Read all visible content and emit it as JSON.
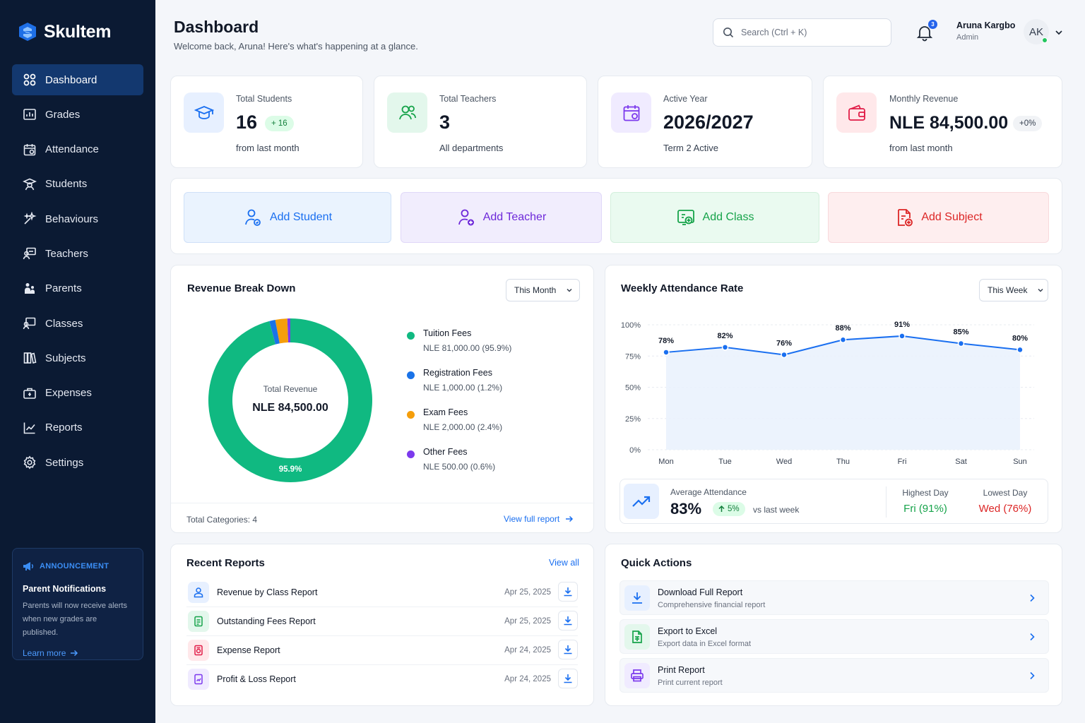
{
  "brand": {
    "name": "Skultem"
  },
  "nav": [
    {
      "label": "Dashboard",
      "icon": "dashboard-icon",
      "active": true
    },
    {
      "label": "Grades",
      "icon": "grades-icon"
    },
    {
      "label": "Attendance",
      "icon": "calendar-icon"
    },
    {
      "label": "Students",
      "icon": "student-icon"
    },
    {
      "label": "Behaviours",
      "icon": "sparkle-icon"
    },
    {
      "label": "Teachers",
      "icon": "teacher-icon"
    },
    {
      "label": "Parents",
      "icon": "parents-icon"
    },
    {
      "label": "Classes",
      "icon": "classes-icon"
    },
    {
      "label": "Subjects",
      "icon": "books-icon"
    },
    {
      "label": "Expenses",
      "icon": "expenses-icon"
    },
    {
      "label": "Reports",
      "icon": "reports-icon"
    },
    {
      "label": "Settings",
      "icon": "gear-icon"
    }
  ],
  "announcement": {
    "tag": "ANNOUNCEMENT",
    "title": "Parent Notifications",
    "text": "Parents will now receive alerts when new grades are published.",
    "link": "Learn more"
  },
  "header": {
    "title": "Dashboard",
    "subtitle": "Welcome back, Aruna! Here's what's happening at a glance.",
    "search_placeholder": "Search (Ctrl + K)",
    "notifications": "3",
    "user_name": "Aruna Kargbo",
    "user_role": "Admin",
    "avatar": "AK"
  },
  "stats": [
    {
      "label": "Total Students",
      "value": "16",
      "badge": "+ 16",
      "sub": "from last month"
    },
    {
      "label": "Total Teachers",
      "value": "3",
      "sub": "All departments"
    },
    {
      "label": "Active Year",
      "value": "2026/2027",
      "sub": "Term 2 Active"
    },
    {
      "label": "Monthly Revenue",
      "value": "NLE 84,500.00",
      "badge": "+0%",
      "sub": "from last month"
    }
  ],
  "quick_add": [
    {
      "label": "Add Student"
    },
    {
      "label": "Add Teacher"
    },
    {
      "label": "Add Class"
    },
    {
      "label": "Add Subject"
    }
  ],
  "revenue": {
    "title": "Revenue Break Down",
    "period": "This Month",
    "center_label": "Total Revenue",
    "center_value": "NLE 84,500.00",
    "slice_label": "95.9%",
    "footer_left": "Total Categories: 4",
    "footer_link": "View full report"
  },
  "attendance": {
    "title": "Weekly Attendance Rate",
    "period": "This Week",
    "avg_label": "Average Attendance",
    "avg_value": "83%",
    "avg_change": "5%",
    "avg_compare": "vs last week",
    "highest_label": "Highest Day",
    "highest_value": "Fri (91%)",
    "lowest_label": "Lowest Day",
    "lowest_value": "Wed (76%)"
  },
  "chart_data": [
    {
      "type": "pie",
      "title": "Revenue Break Down",
      "categories": [
        "Tuition Fees",
        "Registration Fees",
        "Exam Fees",
        "Other Fees"
      ],
      "values": [
        81000,
        1000,
        2000,
        500
      ],
      "value_labels": [
        "NLE 81,000.00 (95.9%)",
        "NLE 1,000.00 (1.2%)",
        "NLE 2,000.00 (2.4%)",
        "NLE 500.00 (0.6%)"
      ],
      "percents": [
        95.9,
        1.2,
        2.4,
        0.6
      ],
      "colors": [
        "#10b981",
        "#1a73e8",
        "#f59e0b",
        "#7c3aed"
      ]
    },
    {
      "type": "line",
      "title": "Weekly Attendance Rate",
      "categories": [
        "Mon",
        "Tue",
        "Wed",
        "Thu",
        "Fri",
        "Sat",
        "Sun"
      ],
      "values": [
        78,
        82,
        76,
        88,
        91,
        85,
        80
      ],
      "data_labels": [
        "78%",
        "82%",
        "76%",
        "88%",
        "91%",
        "85%",
        "80%"
      ],
      "y_ticks": [
        "0%",
        "25%",
        "50%",
        "75%",
        "100%"
      ],
      "ylim": [
        0,
        100
      ],
      "color": "#1a6ff0",
      "grid": true
    }
  ],
  "recent_reports": {
    "title": "Recent Reports",
    "link": "View all",
    "items": [
      {
        "name": "Revenue by Class Report",
        "date": "Apr 25, 2025"
      },
      {
        "name": "Outstanding Fees Report",
        "date": "Apr 25, 2025"
      },
      {
        "name": "Expense Report",
        "date": "Apr 24, 2025"
      },
      {
        "name": "Profit & Loss Report",
        "date": "Apr 24, 2025"
      }
    ]
  },
  "quick_actions": {
    "title": "Quick Actions",
    "items": [
      {
        "title": "Download Full Report",
        "sub": "Comprehensive financial report"
      },
      {
        "title": "Export to Excel",
        "sub": "Export data in Excel format"
      },
      {
        "title": "Print Report",
        "sub": "Print current report"
      }
    ]
  },
  "colors": {
    "sidebar": "#0b1a33",
    "accent": "#1a6ff0",
    "green": "#16a34a",
    "red": "#dc2626"
  }
}
